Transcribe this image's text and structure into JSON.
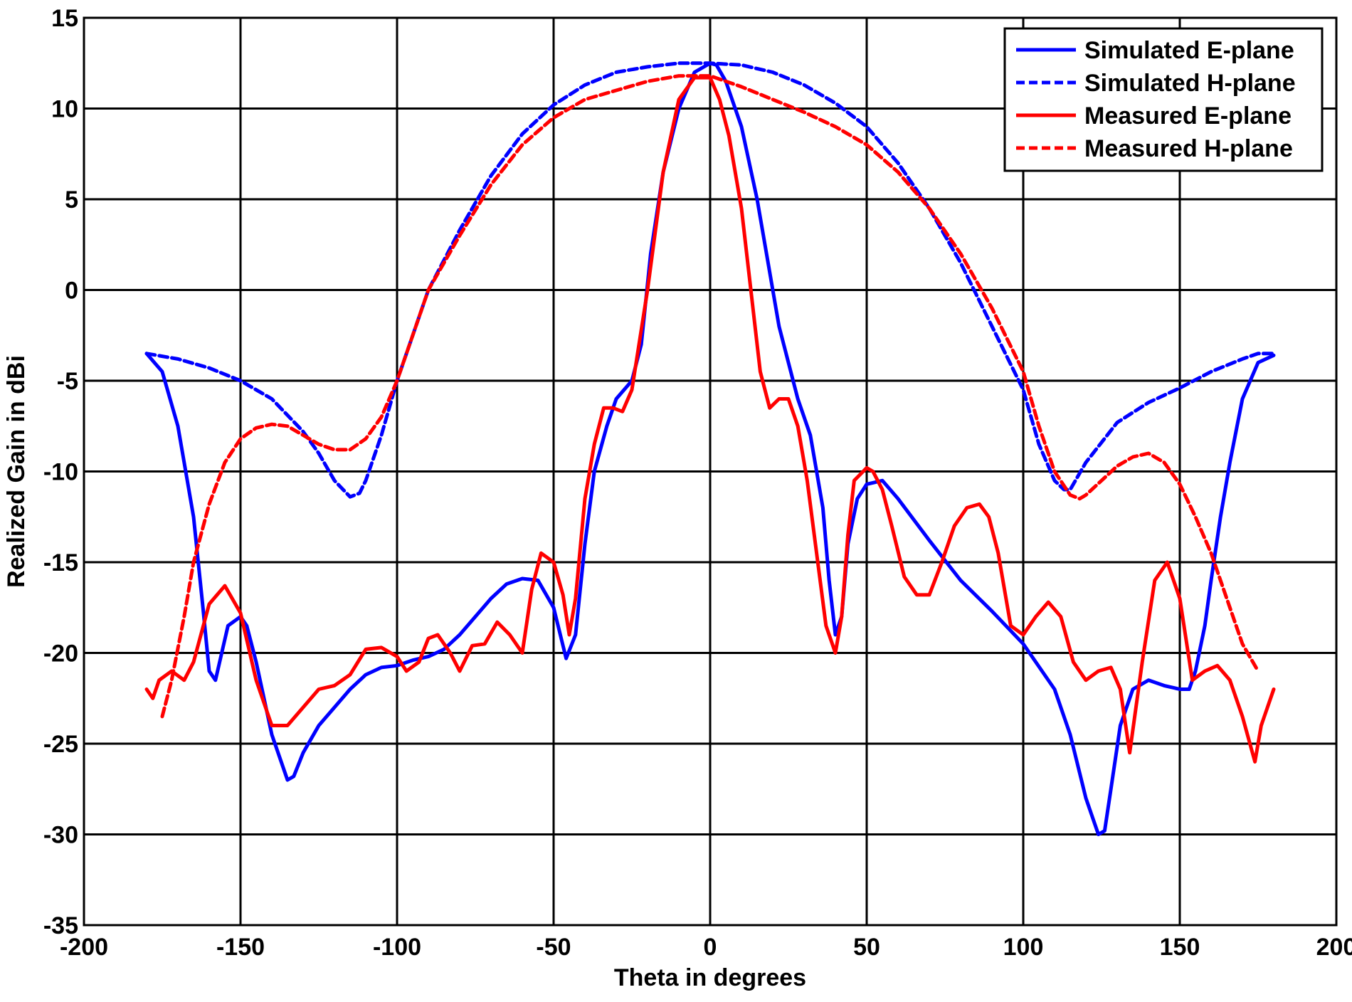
{
  "chart_data": {
    "type": "line",
    "title": "",
    "xlabel": "Theta in degrees",
    "ylabel": "Realized Gain in dBi",
    "xlim": [
      -200,
      200
    ],
    "ylim": [
      -35,
      15
    ],
    "xticks": [
      -200,
      -150,
      -100,
      -50,
      0,
      50,
      100,
      150,
      200
    ],
    "yticks": [
      15,
      10,
      5,
      0,
      -5,
      -10,
      -15,
      -20,
      -25,
      -30,
      -35
    ],
    "xtick_labels": [
      "-200",
      "-150",
      "-100",
      "-50",
      "0",
      "50",
      "100",
      "150",
      "200"
    ],
    "ytick_labels": [
      "15",
      "10",
      "5",
      "0",
      "-5",
      "-10",
      "-15",
      "-20",
      "-25",
      "-30",
      "-35"
    ],
    "grid": true,
    "legend_position": "top-right",
    "series": [
      {
        "name": "Simulated E-plane",
        "color": "#0000ff",
        "dash": "solid",
        "x": [
          -180,
          -175,
          -170,
          -165,
          -162,
          -160,
          -158,
          -156,
          -154,
          -150,
          -148,
          -145,
          -140,
          -135,
          -133,
          -130,
          -125,
          -120,
          -115,
          -110,
          -105,
          -100,
          -95,
          -90,
          -85,
          -80,
          -75,
          -70,
          -65,
          -60,
          -55,
          -50,
          -46,
          -43,
          -40,
          -37,
          -33,
          -30,
          -25,
          -22,
          -19,
          -15,
          -10,
          -5,
          0,
          2,
          5,
          10,
          15,
          20,
          22,
          25,
          28,
          32,
          36,
          38,
          40,
          42,
          44,
          47,
          50,
          55,
          60,
          70,
          80,
          90,
          100,
          110,
          115,
          120,
          124,
          126,
          128,
          131,
          135,
          140,
          145,
          150,
          153,
          155,
          158,
          160,
          163,
          166,
          170,
          175,
          180
        ],
        "y": [
          -3.5,
          -4.5,
          -7.5,
          -12.5,
          -17.5,
          -21.0,
          -21.5,
          -20.0,
          -18.5,
          -18.0,
          -18.5,
          -20.5,
          -24.5,
          -27.0,
          -26.8,
          -25.5,
          -24.0,
          -23.0,
          -22.0,
          -21.2,
          -20.8,
          -20.7,
          -20.4,
          -20.2,
          -19.8,
          -19.0,
          -18.0,
          -17.0,
          -16.2,
          -15.9,
          -16.0,
          -17.5,
          -20.3,
          -19.0,
          -14.0,
          -10.0,
          -7.5,
          -6.0,
          -5.0,
          -3.0,
          2.0,
          6.5,
          10.0,
          12.0,
          12.5,
          12.4,
          11.5,
          9.0,
          5.0,
          0.0,
          -2.0,
          -4.0,
          -6.0,
          -8.0,
          -12.0,
          -16.0,
          -19.0,
          -18.0,
          -14.0,
          -11.5,
          -10.7,
          -10.5,
          -11.5,
          -13.8,
          -16.0,
          -17.7,
          -19.5,
          -22.0,
          -24.5,
          -28.0,
          -30.0,
          -29.8,
          -27.5,
          -24.0,
          -22.0,
          -21.5,
          -21.8,
          -22.0,
          -22.0,
          -21.0,
          -18.5,
          -16.0,
          -12.5,
          -9.5,
          -6.0,
          -4.0,
          -3.6
        ]
      },
      {
        "name": "Simulated H-plane",
        "color": "#0000ff",
        "dash": "dashed",
        "x": [
          -180,
          -170,
          -160,
          -150,
          -140,
          -130,
          -125,
          -120,
          -115,
          -112,
          -110,
          -105,
          -100,
          -95,
          -90,
          -80,
          -70,
          -60,
          -50,
          -40,
          -30,
          -20,
          -10,
          0,
          10,
          20,
          30,
          40,
          50,
          60,
          70,
          80,
          90,
          100,
          105,
          110,
          113,
          115,
          120,
          130,
          140,
          150,
          160,
          170,
          175,
          180
        ],
        "y": [
          -3.5,
          -3.8,
          -4.3,
          -5.0,
          -6.0,
          -7.8,
          -9.0,
          -10.5,
          -11.4,
          -11.2,
          -10.5,
          -8.0,
          -5.0,
          -2.5,
          0.0,
          3.3,
          6.3,
          8.6,
          10.2,
          11.3,
          12.0,
          12.3,
          12.5,
          12.5,
          12.4,
          12.0,
          11.3,
          10.3,
          9.0,
          7.0,
          4.5,
          1.5,
          -2.0,
          -5.5,
          -8.5,
          -10.5,
          -11.0,
          -11.0,
          -9.5,
          -7.3,
          -6.2,
          -5.4,
          -4.5,
          -3.8,
          -3.5,
          -3.5
        ]
      },
      {
        "name": "Measured E-plane",
        "color": "#ff0000",
        "dash": "solid",
        "x": [
          -180,
          -178,
          -176,
          -172,
          -168,
          -165,
          -160,
          -155,
          -150,
          -145,
          -140,
          -135,
          -130,
          -125,
          -120,
          -115,
          -110,
          -105,
          -100,
          -97,
          -93,
          -90,
          -87,
          -83,
          -80,
          -76,
          -72,
          -68,
          -64,
          -60,
          -57,
          -54,
          -50,
          -47,
          -45,
          -43,
          -40,
          -37,
          -34,
          -31,
          -28,
          -25,
          -20,
          -15,
          -10,
          -5,
          0,
          3,
          6,
          10,
          13,
          16,
          19,
          22,
          25,
          28,
          31,
          34,
          37,
          40,
          42,
          44,
          46,
          50,
          52,
          55,
          58,
          62,
          66,
          70,
          74,
          78,
          82,
          86,
          89,
          92,
          96,
          100,
          104,
          108,
          112,
          116,
          120,
          124,
          128,
          131,
          134,
          138,
          142,
          146,
          150,
          154,
          158,
          162,
          166,
          170,
          174,
          176,
          180
        ],
        "y": [
          -22.0,
          -22.5,
          -21.5,
          -21.0,
          -21.5,
          -20.5,
          -17.3,
          -16.3,
          -17.8,
          -21.5,
          -24.0,
          -24.0,
          -23.0,
          -22.0,
          -21.8,
          -21.2,
          -19.8,
          -19.7,
          -20.2,
          -21.0,
          -20.5,
          -19.2,
          -19.0,
          -20.0,
          -21.0,
          -19.6,
          -19.5,
          -18.3,
          -19.0,
          -20.0,
          -16.5,
          -14.5,
          -15.0,
          -16.8,
          -19.0,
          -17.0,
          -11.5,
          -8.5,
          -6.5,
          -6.5,
          -6.7,
          -5.5,
          0.0,
          6.5,
          10.5,
          11.7,
          11.7,
          10.5,
          8.5,
          4.5,
          0.0,
          -4.5,
          -6.5,
          -6.0,
          -6.0,
          -7.5,
          -10.5,
          -14.5,
          -18.5,
          -20.0,
          -18.0,
          -13.5,
          -10.5,
          -9.8,
          -10.0,
          -11.0,
          -13.0,
          -15.8,
          -16.8,
          -16.8,
          -15.0,
          -13.0,
          -12.0,
          -11.8,
          -12.5,
          -14.5,
          -18.5,
          -19.0,
          -18.0,
          -17.2,
          -18.0,
          -20.5,
          -21.5,
          -21.0,
          -20.8,
          -22.0,
          -25.5,
          -20.5,
          -16.0,
          -15.0,
          -17.0,
          -21.5,
          -21.0,
          -20.7,
          -21.5,
          -23.5,
          -26.0,
          -24.0,
          -22.0
        ]
      },
      {
        "name": "Measured H-plane",
        "color": "#ff0000",
        "dash": "dashed",
        "x": [
          -175,
          -172,
          -168,
          -165,
          -160,
          -155,
          -150,
          -145,
          -140,
          -135,
          -130,
          -125,
          -120,
          -115,
          -110,
          -105,
          -100,
          -95,
          -90,
          -80,
          -70,
          -60,
          -50,
          -40,
          -30,
          -20,
          -10,
          0,
          10,
          20,
          30,
          40,
          50,
          60,
          70,
          80,
          90,
          100,
          105,
          110,
          115,
          118,
          120,
          125,
          130,
          135,
          140,
          145,
          150,
          155,
          160,
          165,
          170,
          175
        ],
        "y": [
          -23.5,
          -21.5,
          -18.0,
          -15.0,
          -11.8,
          -9.5,
          -8.2,
          -7.6,
          -7.4,
          -7.5,
          -8.0,
          -8.5,
          -8.8,
          -8.8,
          -8.2,
          -7.0,
          -5.0,
          -2.5,
          0.0,
          3.0,
          5.8,
          8.0,
          9.5,
          10.5,
          11.0,
          11.5,
          11.8,
          11.8,
          11.2,
          10.5,
          9.8,
          9.0,
          8.0,
          6.5,
          4.5,
          2.0,
          -1.0,
          -4.5,
          -7.5,
          -10.0,
          -11.3,
          -11.5,
          -11.3,
          -10.5,
          -9.7,
          -9.2,
          -9.0,
          -9.5,
          -10.7,
          -12.5,
          -14.5,
          -17.0,
          -19.5,
          -21.0
        ]
      }
    ]
  }
}
